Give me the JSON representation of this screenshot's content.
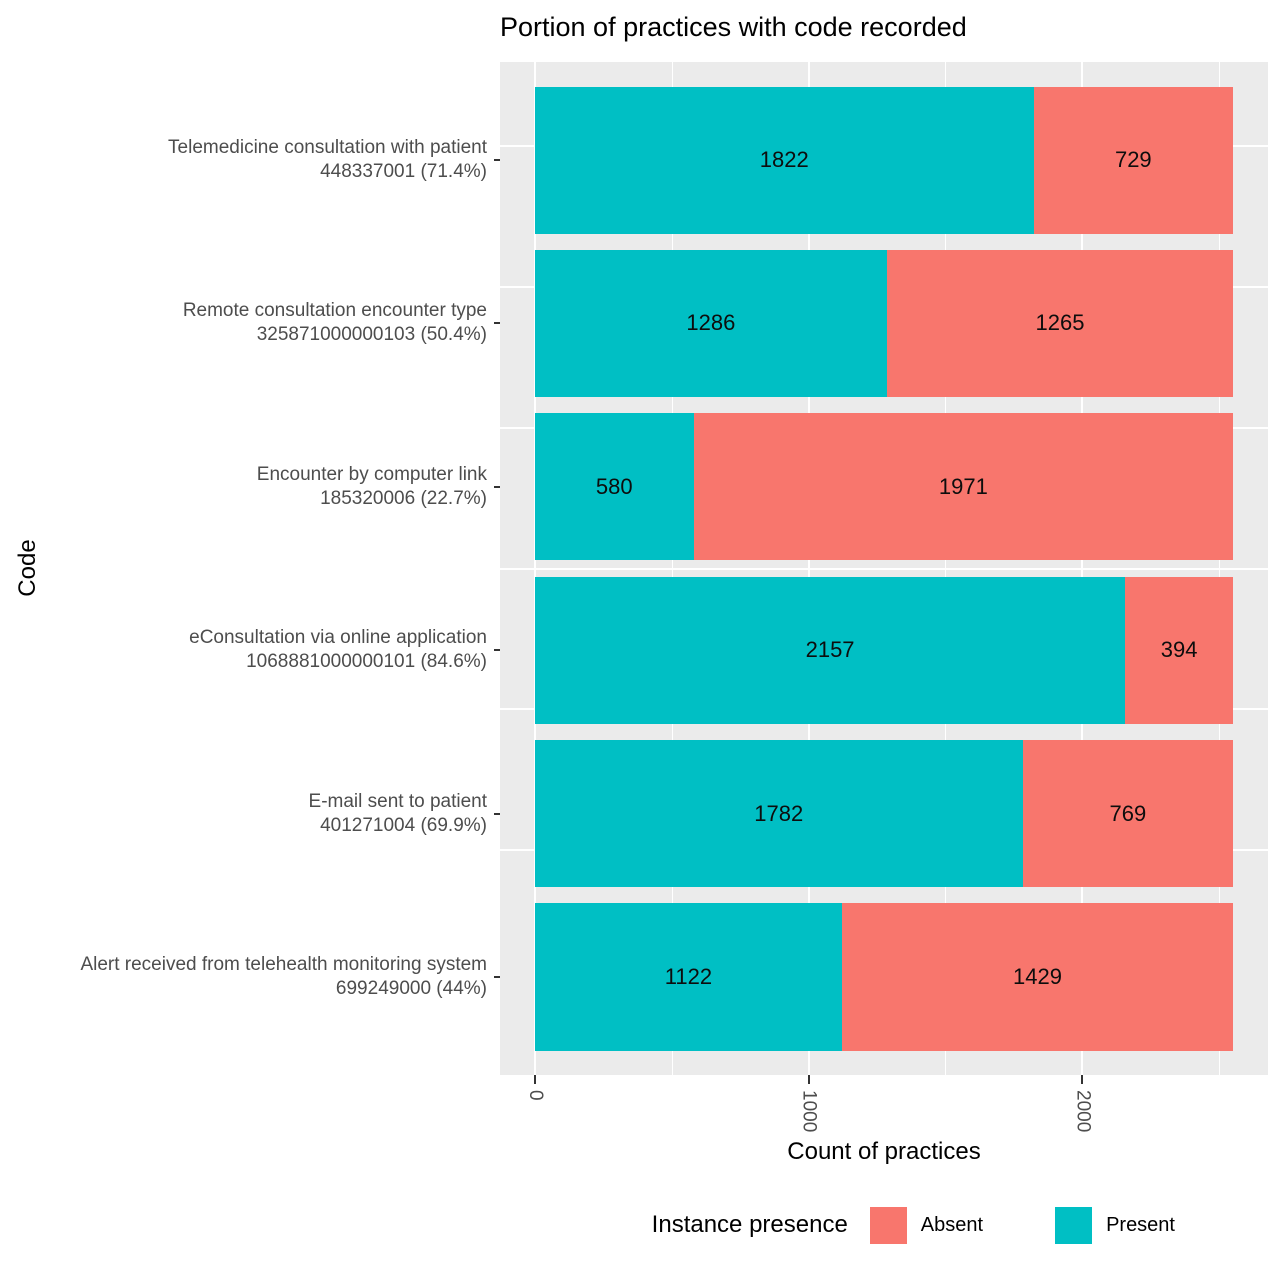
{
  "chart_data": {
    "type": "bar",
    "orientation": "horizontal",
    "stacked": true,
    "title": "Portion of practices with code recorded",
    "xlabel": "Count of practices",
    "ylabel": "Code",
    "x_ticks": [
      0,
      1000,
      2000
    ],
    "x_minor_ticks": [
      500,
      1500,
      2500
    ],
    "x_range": [
      -127.55,
      2678.55
    ],
    "total_per_bar": 2551,
    "grid": "on",
    "panel_background": "#EBEBEB",
    "gridline_color": "#FFFFFF",
    "axis_text_color": "#4D4D4D",
    "colors": {
      "present": "#00BFC4",
      "absent": "#F8766D"
    },
    "legend": {
      "title": "Instance presence",
      "position": "bottom",
      "entries": [
        {
          "label": "Absent",
          "color": "#F8766D"
        },
        {
          "label": "Present",
          "color": "#00BFC4"
        }
      ]
    },
    "rows": [
      {
        "label": "Telemedicine consultation with patient",
        "sublabel": "448337001 (71.4%)",
        "present": 1822,
        "absent": 729
      },
      {
        "label": "Remote consultation encounter type",
        "sublabel": "325871000000103 (50.4%)",
        "present": 1286,
        "absent": 1265
      },
      {
        "label": "Encounter by computer link",
        "sublabel": "185320006 (22.7%)",
        "present": 580,
        "absent": 1971
      },
      {
        "label": "eConsultation via online application",
        "sublabel": "1068881000000101 (84.6%)",
        "present": 2157,
        "absent": 394
      },
      {
        "label": "E-mail sent to patient",
        "sublabel": "401271004 (69.9%)",
        "present": 1782,
        "absent": 769
      },
      {
        "label": "Alert received from telehealth monitoring system",
        "sublabel": "699249000 (44%)",
        "present": 1122,
        "absent": 1429
      }
    ]
  }
}
